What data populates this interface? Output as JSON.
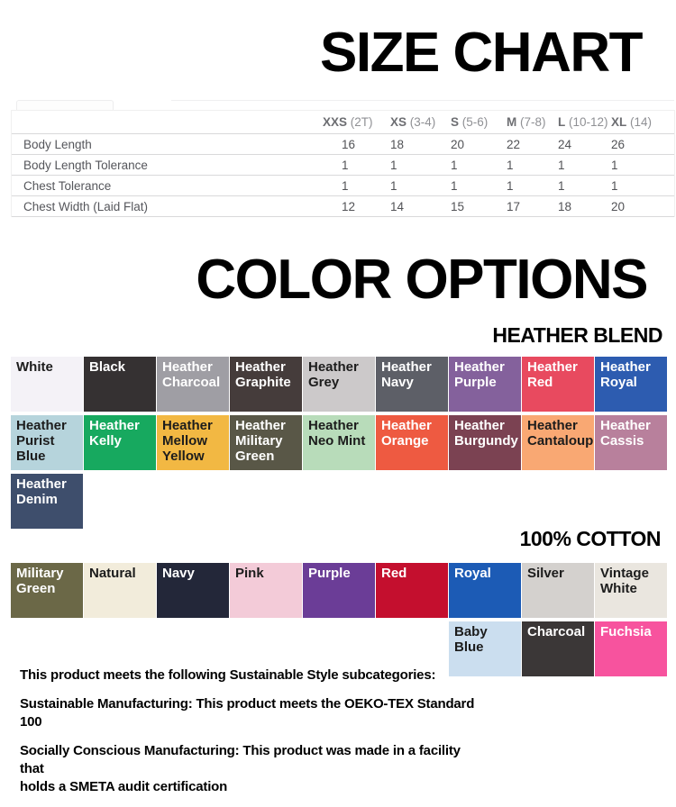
{
  "titles": {
    "size_chart": "SIZE CHART",
    "color_options": "COLOR OPTIONS",
    "heather_heading": "HEATHER BLEND",
    "cotton_heading": "100% COTTON"
  },
  "size_table": {
    "columns": [
      {
        "code": "XXS",
        "range": "(2T)"
      },
      {
        "code": "XS",
        "range": "(3-4)"
      },
      {
        "code": "S",
        "range": "(5-6)"
      },
      {
        "code": "M",
        "range": "(7-8)"
      },
      {
        "code": "L",
        "range": "(10-12)"
      },
      {
        "code": "XL",
        "range": "(14)"
      }
    ],
    "rows": [
      {
        "label": "Body Length",
        "values": [
          "16",
          "18",
          "20",
          "22",
          "24",
          "26"
        ]
      },
      {
        "label": "Body Length Tolerance",
        "values": [
          "1",
          "1",
          "1",
          "1",
          "1",
          "1"
        ]
      },
      {
        "label": "Chest Tolerance",
        "values": [
          "1",
          "1",
          "1",
          "1",
          "1",
          "1"
        ]
      },
      {
        "label": "Chest Width (Laid Flat)",
        "values": [
          "12",
          "14",
          "15",
          "17",
          "18",
          "20"
        ]
      }
    ]
  },
  "heather_swatches": [
    {
      "name": "White",
      "bg": "#f4f2f7",
      "fg": "#1c1c1c"
    },
    {
      "name": "Black",
      "bg": "#353132",
      "fg": "#ffffff"
    },
    {
      "name": "Heather Charcoal",
      "bg": "#9f9ea4",
      "fg": "#ffffff"
    },
    {
      "name": "Heather Graphite",
      "bg": "#453c3b",
      "fg": "#ffffff"
    },
    {
      "name": "Heather Grey",
      "bg": "#ccc9ca",
      "fg": "#1c1c1c"
    },
    {
      "name": "Heather Navy",
      "bg": "#5d5f67",
      "fg": "#ffffff"
    },
    {
      "name": "Heather Purple",
      "bg": "#84619c",
      "fg": "#ffffff"
    },
    {
      "name": "Heather Red",
      "bg": "#e84a5f",
      "fg": "#ffffff"
    },
    {
      "name": "Heather Royal",
      "bg": "#2d5cb0",
      "fg": "#ffffff"
    },
    {
      "name": "Heather Purist Blue",
      "bg": "#b6d4dc",
      "fg": "#1c1c1c"
    },
    {
      "name": "Heather Kelly",
      "bg": "#17a95f",
      "fg": "#ffffff"
    },
    {
      "name": "Heather Mellow Yellow",
      "bg": "#f2b843",
      "fg": "#1c1c1c"
    },
    {
      "name": "Heather Military Green",
      "bg": "#595747",
      "fg": "#ffffff"
    },
    {
      "name": "Heather Neo Mint",
      "bg": "#b8dcba",
      "fg": "#1c1c1c"
    },
    {
      "name": "Heather Orange",
      "bg": "#ee5a41",
      "fg": "#ffffff"
    },
    {
      "name": "Heather Burgundy",
      "bg": "#7b4252",
      "fg": "#ffffff"
    },
    {
      "name": "Heather Cantaloupe",
      "bg": "#f9a873",
      "fg": "#1c1c1c"
    },
    {
      "name": "Heather Cassis",
      "bg": "#b8809c",
      "fg": "#ffffff"
    },
    {
      "name": "Heather Denim",
      "bg": "#3e4e6c",
      "fg": "#ffffff"
    }
  ],
  "cotton_swatches": [
    {
      "name": "Military Green",
      "bg": "#6b6847",
      "fg": "#ffffff"
    },
    {
      "name": "Natural",
      "bg": "#f2ecdb",
      "fg": "#1c1c1c"
    },
    {
      "name": "Navy",
      "bg": "#232739",
      "fg": "#ffffff"
    },
    {
      "name": "Pink",
      "bg": "#f3cbd8",
      "fg": "#1c1c1c"
    },
    {
      "name": "Purple",
      "bg": "#6b3d97",
      "fg": "#ffffff"
    },
    {
      "name": "Red",
      "bg": "#c40f2e",
      "fg": "#ffffff"
    },
    {
      "name": "Royal",
      "bg": "#1c5bb5",
      "fg": "#ffffff"
    },
    {
      "name": "Silver",
      "bg": "#d4d1ce",
      "fg": "#1c1c1c"
    },
    {
      "name": "Vintage White",
      "bg": "#eae6df",
      "fg": "#1c1c1c"
    },
    {
      "name": "Baby Blue",
      "bg": "#cbdeef",
      "fg": "#1c1c1c"
    },
    {
      "name": "Charcoal",
      "bg": "#3b3737",
      "fg": "#ffffff"
    },
    {
      "name": "Fuchsia",
      "bg": "#f7539e",
      "fg": "#ffffff"
    }
  ],
  "sustainability": {
    "p1": "This product meets the following Sustainable Style subcategories:",
    "p2": "Sustainable Manufacturing: This product meets the OEKO-TEX Standard 100",
    "p3a": "Socially Conscious Manufacturing: This product was made in a facility that",
    "p3b": "holds a SMETA audit certification"
  }
}
